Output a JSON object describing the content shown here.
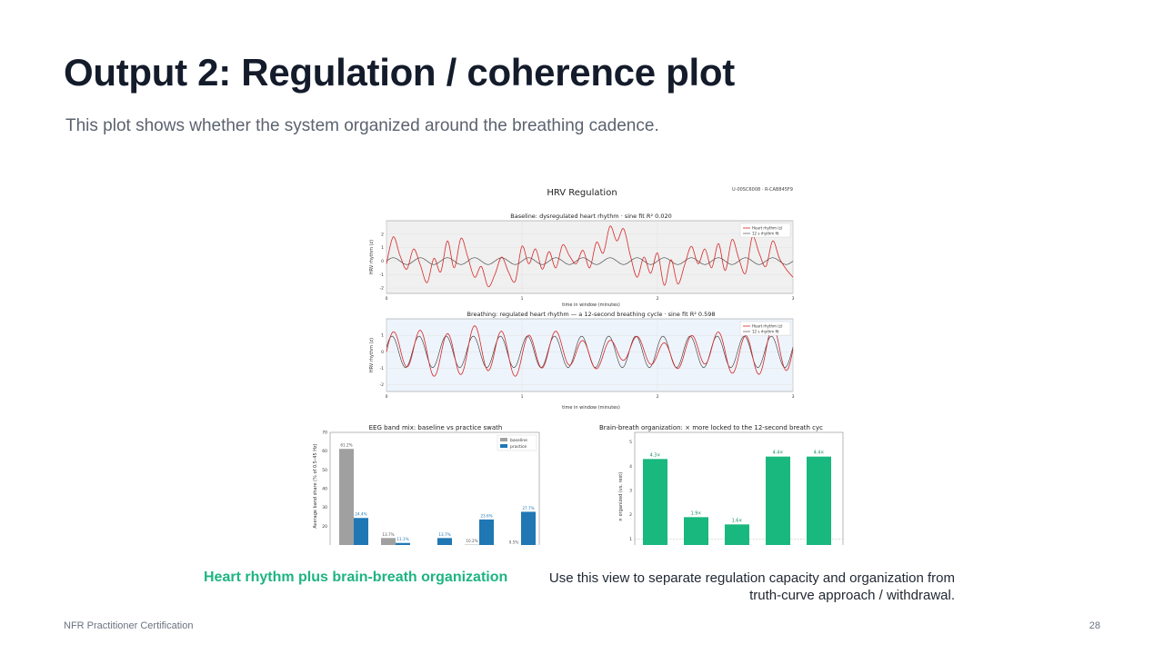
{
  "slide": {
    "title": "Output 2: Regulation / coherence plot",
    "subtitle": "This plot shows whether the system organized around the breathing cadence.",
    "caption_left": "Heart rhythm plus brain-breath organization",
    "caption_right": "Use this view to separate regulation capacity and organization from truth-curve approach / withdrawal.",
    "footer_left": "NFR Practitioner Certification",
    "page_number": "28"
  },
  "figure": {
    "title": "HRV Regulation",
    "ids": "U-00SC6008  ·  R-CAB845F9",
    "colors": {
      "heart": "#d62728",
      "fit": "#333333",
      "baseline": "#a0a0a0",
      "practice": "#1f77b4",
      "green": "#19b87e"
    }
  },
  "chart_data": [
    {
      "type": "line",
      "title": "Baseline: dysregulated heart rhythm · sine fit R² 0.020",
      "xlabel": "time in window (minutes)",
      "ylabel": "HRV rhythm (z)",
      "xlim": [
        0,
        3
      ],
      "ylim": [
        -2.4,
        3.0
      ],
      "xticks": [
        "0",
        "1",
        "2",
        "3"
      ],
      "yticks": [
        "2",
        "1",
        "0",
        "-1",
        "-2"
      ],
      "legend": [
        "Heart rhythm (z)",
        "12 s rhythm fit"
      ],
      "series": [
        {
          "name": "Heart rhythm (z)",
          "x": [
            0,
            0.05,
            0.1,
            0.15,
            0.2,
            0.25,
            0.3,
            0.35,
            0.4,
            0.45,
            0.5,
            0.55,
            0.6,
            0.65,
            0.7,
            0.75,
            0.8,
            0.85,
            0.9,
            0.95,
            1.0,
            1.05,
            1.1,
            1.15,
            1.2,
            1.25,
            1.3,
            1.35,
            1.4,
            1.45,
            1.5,
            1.55,
            1.6,
            1.65,
            1.7,
            1.75,
            1.8,
            1.85,
            1.9,
            1.95,
            2.0,
            2.05,
            2.1,
            2.15,
            2.2,
            2.25,
            2.3,
            2.35,
            2.4,
            2.45,
            2.5,
            2.55,
            2.6,
            2.65,
            2.7,
            2.75,
            2.8,
            2.85,
            2.9,
            2.95,
            3.0
          ],
          "y": [
            -0.2,
            1.8,
            0.4,
            -0.6,
            0.9,
            -0.3,
            -1.6,
            0.2,
            -0.8,
            1.5,
            -0.5,
            1.7,
            0.3,
            -1.2,
            -0.4,
            -1.9,
            -1.0,
            0.3,
            -0.8,
            -1.5,
            1.1,
            -0.2,
            0.9,
            -0.6,
            0.7,
            -0.5,
            1.2,
            0.4,
            -0.2,
            0.8,
            -0.5,
            1.4,
            0.6,
            2.6,
            1.5,
            2.4,
            0.4,
            -1.2,
            0.3,
            -0.9,
            0.6,
            -1.8,
            0.1,
            -1.7,
            -0.3,
            1.1,
            -0.2,
            0.9,
            -0.5,
            1.3,
            -0.7,
            1.6,
            0.2,
            -0.9,
            1.8,
            0.6,
            -0.4,
            1.5,
            0.2,
            -0.6,
            -1.2
          ]
        },
        {
          "name": "12 s rhythm fit",
          "amplitude": 0.25,
          "period_seconds": 12
        }
      ]
    },
    {
      "type": "line",
      "title": "Breathing: regulated heart rhythm — a 12-second breathing cycle · sine fit R² 0.598",
      "xlabel": "time in window (minutes)",
      "ylabel": "HRV rhythm (z)",
      "xlim": [
        0,
        3
      ],
      "ylim": [
        -2.4,
        2.0
      ],
      "xticks": [
        "0",
        "1",
        "2",
        "3"
      ],
      "yticks": [
        "1",
        "0",
        "-1",
        "-2"
      ],
      "legend": [
        "Heart rhythm (z)",
        "12 s rhythm fit"
      ],
      "series": [
        {
          "name": "Heart rhythm (z)",
          "amplitude": 1.3,
          "period_seconds": 12
        },
        {
          "name": "12 s rhythm fit",
          "amplitude": 0.95,
          "period_seconds": 12
        }
      ]
    },
    {
      "type": "bar",
      "title": "EEG band mix: baseline vs practice swath",
      "ylabel": "Average band share (% of 0.5–45 Hz)",
      "ylim": [
        10,
        70
      ],
      "yticks": [
        "70",
        "60",
        "50",
        "40",
        "30",
        "20"
      ],
      "legend": [
        "baseline",
        "practice"
      ],
      "series": [
        {
          "name": "baseline",
          "values": [
            61.2,
            13.7,
            null,
            10.2,
            9.5
          ],
          "labels": [
            "61.2%",
            "13.7%",
            "",
            "10.2%",
            "9.5%"
          ]
        },
        {
          "name": "practice",
          "values": [
            24.4,
            11.1,
            13.7,
            23.6,
            27.7
          ],
          "labels": [
            "24.4%",
            "11.1%",
            "13.7%",
            "23.6%",
            "27.7%"
          ]
        }
      ]
    },
    {
      "type": "bar",
      "title": "Brain-breath organization: × more locked to the 12-second breath cyc",
      "ylabel": "× organized (vs. rest)",
      "ylim": [
        0.75,
        5.4
      ],
      "yticks": [
        "5",
        "4",
        "3",
        "2",
        "1"
      ],
      "values": [
        4.3,
        1.9,
        1.6,
        4.4,
        4.4
      ],
      "labels": [
        "4.3×",
        "1.9×",
        "1.6×",
        "4.4×",
        "4.4×"
      ]
    }
  ]
}
